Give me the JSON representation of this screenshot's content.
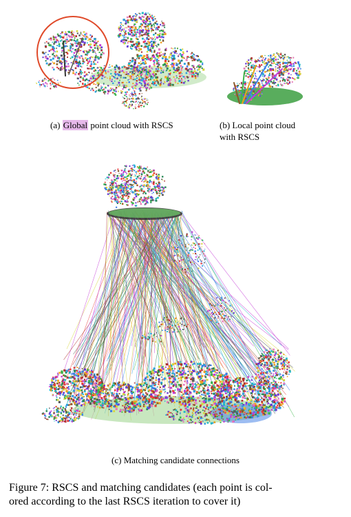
{
  "subfigures": {
    "a": {
      "prefix": "(a) ",
      "highlight": "Global",
      "suffix": " point cloud with RSCS"
    },
    "b": {
      "line1": "(b) Local point cloud",
      "line2": "with RSCS"
    },
    "c": {
      "caption": "(c) Matching candidate connections"
    }
  },
  "figure_caption": {
    "line1": "Figure 7: RSCS and matching candidates (each point is col-",
    "line2": "ored according to the last RSCS iteration to cover it)"
  },
  "colors": {
    "highlight": "#e6b8ea",
    "circle": "#e04a2a"
  }
}
